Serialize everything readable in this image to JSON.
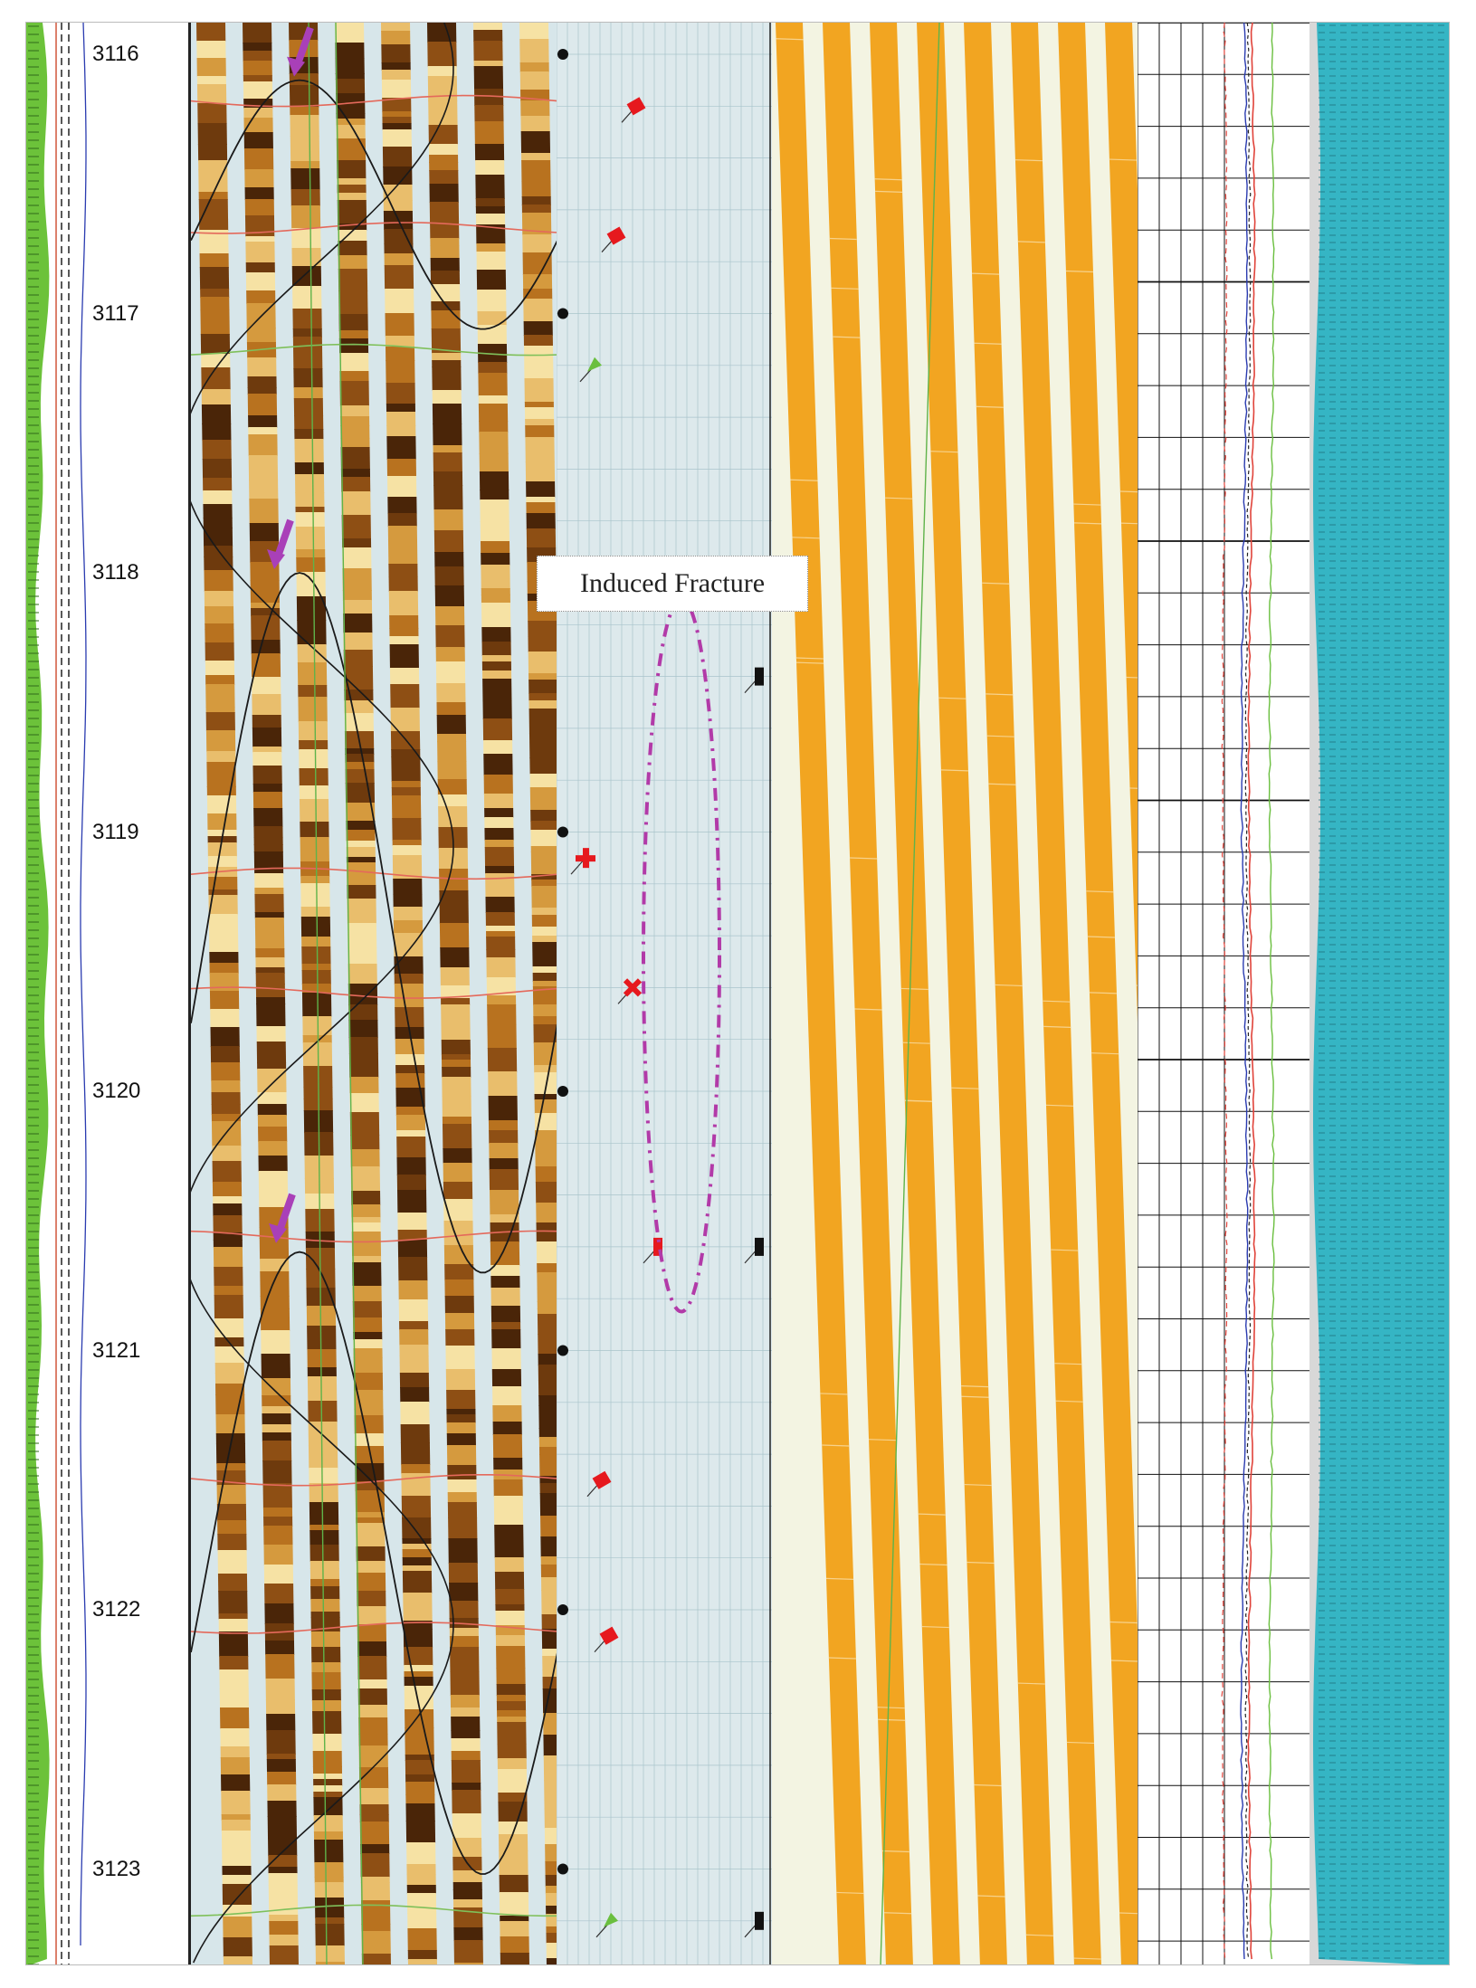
{
  "depth_track": {
    "labels": [
      "3116",
      "3117",
      "3118",
      "3119",
      "3120",
      "3121",
      "3122",
      "3123"
    ],
    "values": [
      3116,
      3117,
      3118,
      3119,
      3120,
      3121,
      3122,
      3123
    ]
  },
  "annotation": {
    "text": "Induced Fracture",
    "outline_color": "#b23aa8",
    "arrow_color": "#a940b8",
    "arrow_depths": [
      3116.1,
      3118.0,
      3120.6
    ]
  },
  "tadpoles": [
    {
      "depth": 3116.2,
      "color": "#e6191e",
      "shape": "square"
    },
    {
      "depth": 3116.7,
      "color": "#e6191e",
      "shape": "square"
    },
    {
      "depth": 3117.2,
      "color": "#6abf3f",
      "shape": "triangle"
    },
    {
      "depth": 3118.4,
      "color": "#111111",
      "shape": "bar"
    },
    {
      "depth": 3119.1,
      "color": "#e6191e",
      "shape": "cross"
    },
    {
      "depth": 3119.6,
      "color": "#e6191e",
      "shape": "x"
    },
    {
      "depth": 3120.6,
      "color": "#e6191e",
      "shape": "bar"
    },
    {
      "depth": 3120.6,
      "color": "#111111",
      "shape": "bar"
    },
    {
      "depth": 3121.5,
      "color": "#e6191e",
      "shape": "square"
    },
    {
      "depth": 3122.1,
      "color": "#e6191e",
      "shape": "square"
    },
    {
      "depth": 3123.2,
      "color": "#6abf3f",
      "shape": "triangle"
    },
    {
      "depth": 3123.2,
      "color": "#111111",
      "shape": "bar"
    }
  ],
  "colors": {
    "dynamic_dark": "#4a2508",
    "dynamic_mid": "#b8721f",
    "dynamic_light": "#f6e2a4",
    "pad_gap": "#d7e6ea",
    "static_orange": "#f2a521",
    "static_gap": "#f3f4e2",
    "gamma_fill": "#6cc23a",
    "lithology_fill": "#35b5c4",
    "bed_line": "#e4695b",
    "sinusoid": "#1a1a1a"
  }
}
